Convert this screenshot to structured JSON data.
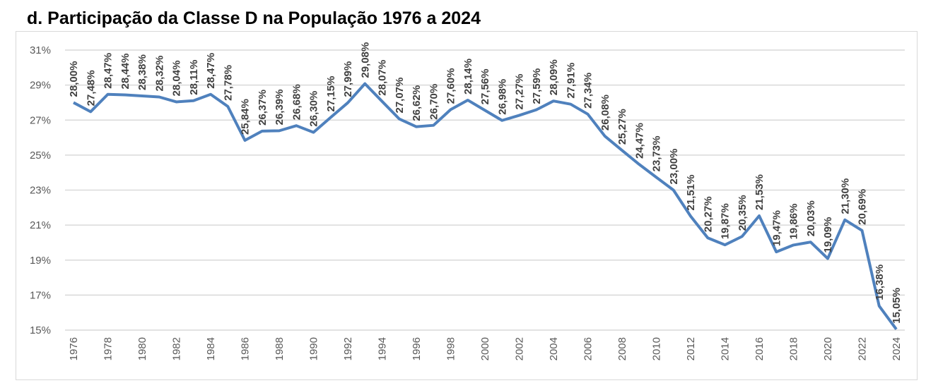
{
  "chart_data": {
    "type": "line",
    "title": "d.   Participação da Classe D na População 1976 a 2024",
    "xlabel": "",
    "ylabel": "",
    "ylim": [
      15,
      31
    ],
    "yticks": [
      "15%",
      "17%",
      "19%",
      "21%",
      "23%",
      "25%",
      "27%",
      "29%",
      "31%"
    ],
    "grid": true,
    "legend": "none",
    "color": "#4f81bd",
    "x": [
      1976,
      1977,
      1978,
      1979,
      1980,
      1981,
      1982,
      1983,
      1984,
      1985,
      1986,
      1987,
      1988,
      1989,
      1990,
      1991,
      1992,
      1993,
      1994,
      1995,
      1996,
      1997,
      1998,
      1999,
      2000,
      2001,
      2002,
      2003,
      2004,
      2005,
      2006,
      2007,
      2008,
      2009,
      2010,
      2011,
      2012,
      2013,
      2014,
      2015,
      2016,
      2017,
      2018,
      2019,
      2020,
      2021,
      2022,
      2023,
      2024
    ],
    "xticks": [
      "1976",
      "1978",
      "1980",
      "1982",
      "1984",
      "1986",
      "1988",
      "1990",
      "1992",
      "1994",
      "1996",
      "1998",
      "2000",
      "2002",
      "2004",
      "2006",
      "2008",
      "2010",
      "2012",
      "2014",
      "2016",
      "2018",
      "2020",
      "2022",
      "2024"
    ],
    "series": [
      {
        "name": "Classe D",
        "values": [
          28.0,
          27.48,
          28.47,
          28.44,
          28.38,
          28.32,
          28.04,
          28.11,
          28.47,
          27.78,
          25.84,
          26.37,
          26.39,
          26.68,
          26.3,
          27.15,
          27.99,
          29.08,
          28.07,
          27.07,
          26.62,
          26.7,
          27.6,
          28.14,
          27.56,
          26.98,
          27.27,
          27.59,
          28.09,
          27.91,
          27.34,
          26.08,
          25.27,
          24.47,
          23.73,
          23.0,
          21.51,
          20.27,
          19.87,
          20.35,
          21.53,
          19.47,
          19.86,
          20.03,
          19.09,
          21.3,
          20.69,
          16.38,
          15.05
        ],
        "labels": [
          "28,00%",
          "27,48%",
          "28,47%",
          "28,44%",
          "28,38%",
          "28,32%",
          "28,04%",
          "28,11%",
          "28,47%",
          "27,78%",
          "25,84%",
          "26,37%",
          "26,39%",
          "26,68%",
          "26,30%",
          "27,15%",
          "27,99%",
          "29,08%",
          "28,07%",
          "27,07%",
          "26,62%",
          "26,70%",
          "27,60%",
          "28,14%",
          "27,56%",
          "26,98%",
          "27,27%",
          "27,59%",
          "28,09%",
          "27,91%",
          "27,34%",
          "26,08%",
          "25,27%",
          "24,47%",
          "23,73%",
          "23,00%",
          "21,51%",
          "20,27%",
          "19,87%",
          "20,35%",
          "21,53%",
          "19,47%",
          "19,86%",
          "20,03%",
          "19,09%",
          "21,30%",
          "20,69%",
          "16,38%",
          "15,05%"
        ]
      }
    ]
  }
}
